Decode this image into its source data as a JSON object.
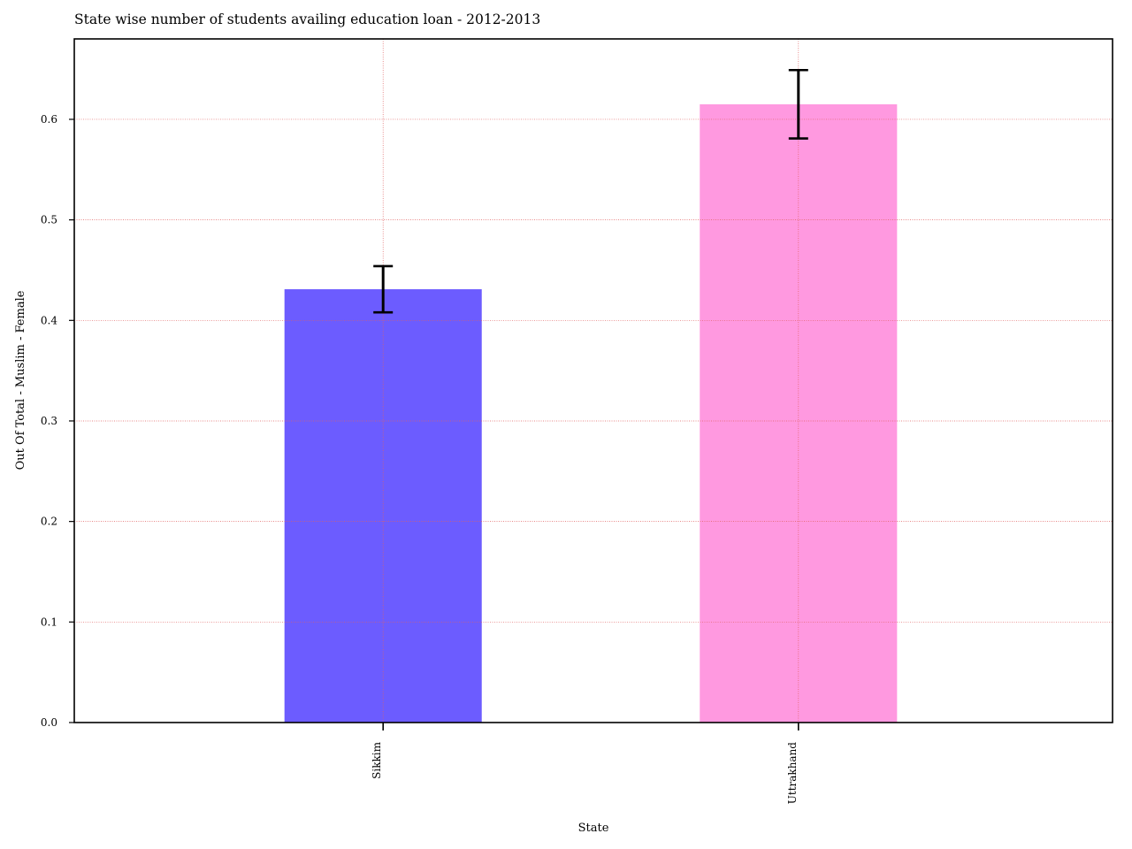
{
  "chart_data": {
    "type": "bar",
    "title": "State wise number of students availing education loan - 2012-2013",
    "xlabel": "State",
    "ylabel": "Out Of Total - Muslim - Female",
    "categories": [
      "Sikkim",
      "Uttrakhand"
    ],
    "values": [
      0.431,
      0.615
    ],
    "errors": [
      0.023,
      0.034
    ],
    "bar_colors": [
      "#6c5cff",
      "#ff99e0"
    ],
    "ylim": [
      0,
      0.68
    ],
    "yticks": [
      "0.0",
      "0.1",
      "0.2",
      "0.3",
      "0.4",
      "0.5",
      "0.6"
    ],
    "grid": true,
    "grid_color": "#e06060",
    "legend": "none"
  }
}
